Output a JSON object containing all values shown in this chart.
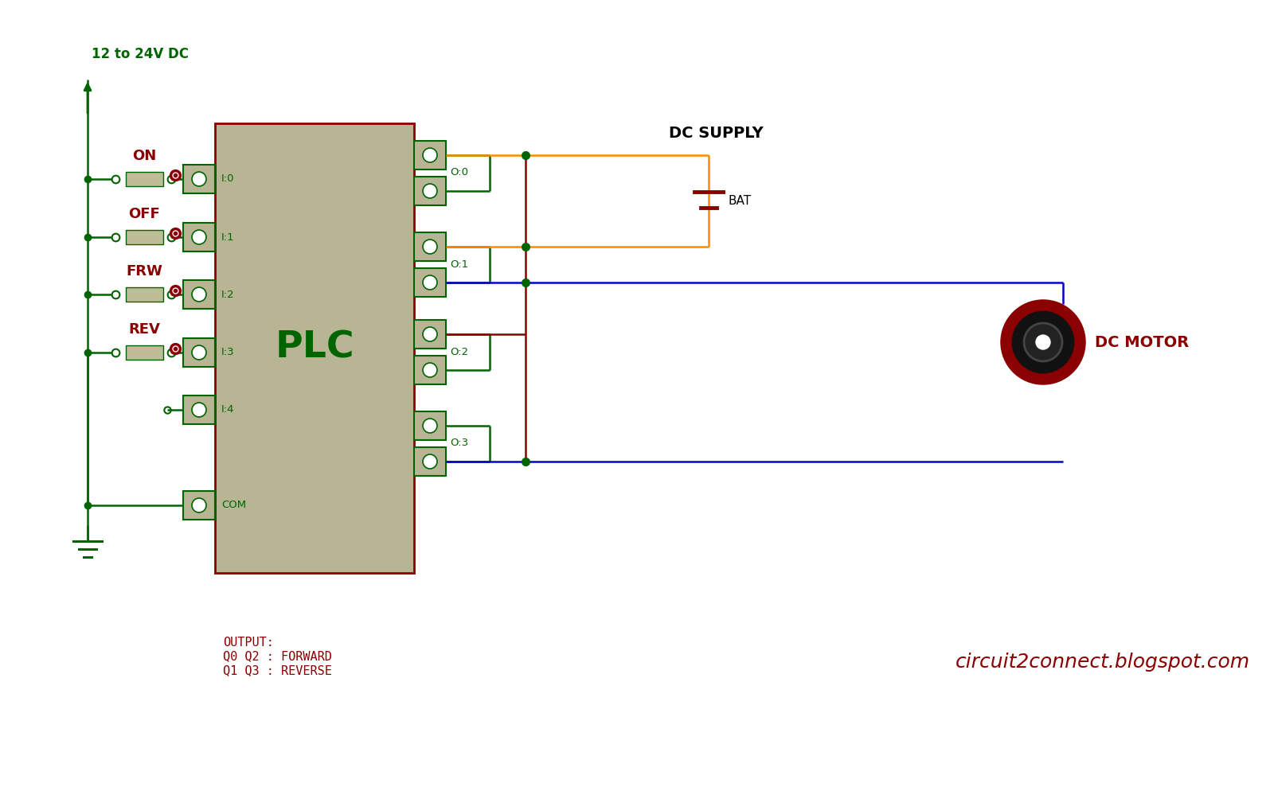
{
  "bg_color": "#ffffff",
  "plc_color": "#b8b594",
  "plc_border_color": "#8b0000",
  "plc_text_color": "#006400",
  "wire_green": "#006400",
  "wire_orange": "#ff8c00",
  "wire_blue": "#0000cd",
  "wire_dark_red": "#8b0000",
  "switch_color": "#c0bc98",
  "voltage_label": "12 to 24V DC",
  "plc_label": "PLC",
  "dc_supply_label": "DC SUPPLY",
  "bat_label": "BAT",
  "motor_label": "DC MOTOR",
  "output_text": "OUTPUT:\nQ0 Q2 : FORWARD\nQ1 Q3 : REVERSE",
  "website_text": "circuit2connect.blogspot.com",
  "input_labels": [
    "I:0",
    "I:1",
    "I:2",
    "I:3",
    "I:4",
    "COM"
  ],
  "output_labels": [
    "O:0",
    "O:1",
    "O:2",
    "O:3"
  ],
  "switch_names": [
    "ON",
    "OFF",
    "FRW",
    "REV"
  ]
}
